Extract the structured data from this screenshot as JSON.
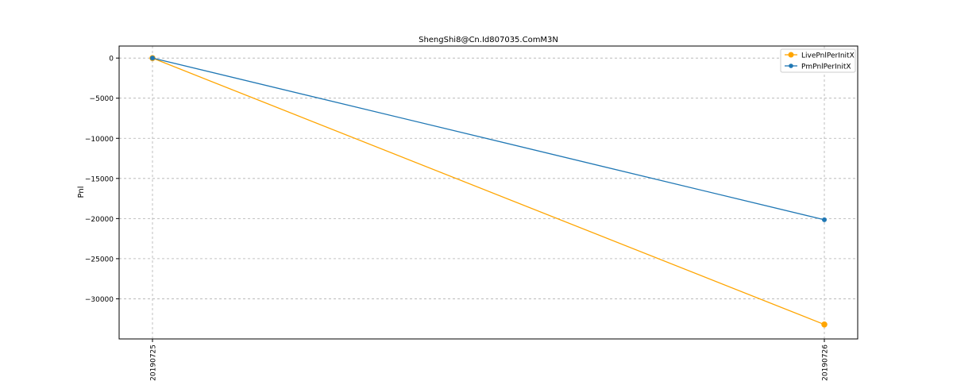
{
  "chart_data": {
    "type": "line",
    "title": "ShengShi8@Cn.Id807035.ComM3N",
    "xlabel": "",
    "ylabel": "Pnl",
    "x": [
      "20190725",
      "20190726"
    ],
    "ylim": [
      -35000,
      1500
    ],
    "yticks": [
      0,
      -5000,
      -10000,
      -15000,
      -20000,
      -25000,
      -30000
    ],
    "ytick_labels": [
      "0",
      "−5000",
      "−10000",
      "−15000",
      "−20000",
      "−25000",
      "−30000"
    ],
    "grid": true,
    "legend_position": "top-right",
    "series": [
      {
        "name": "LivePnlPerInitX",
        "color": "#ffa500",
        "marker": "circle-large",
        "values": [
          0,
          -33200
        ]
      },
      {
        "name": "PmPnlPerInitX",
        "color": "#1f77b4",
        "marker": "circle",
        "values": [
          0,
          -20150
        ]
      }
    ]
  }
}
